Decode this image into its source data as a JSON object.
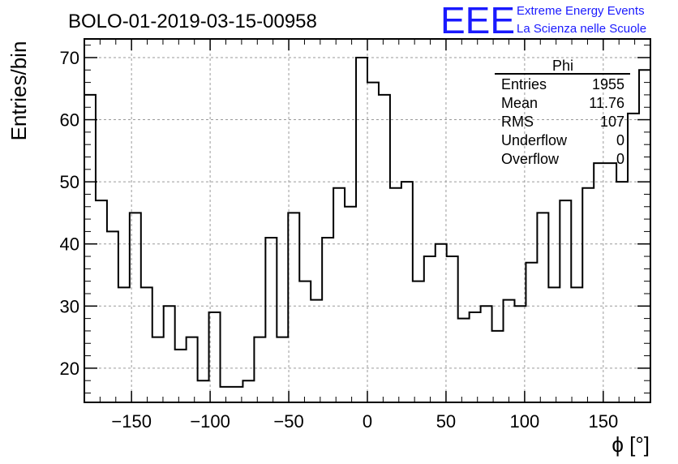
{
  "title": "BOLO-01-2019-03-15-00958",
  "brand": {
    "logo": "EEE",
    "line1": "Extreme Energy Events",
    "line2": "La Scienza nelle Scuole",
    "color": "#1a1aff"
  },
  "stats": {
    "name": "Phi",
    "rows": [
      {
        "label": "Entries",
        "value": "1955"
      },
      {
        "label": "Mean",
        "value": "11.76"
      },
      {
        "label": "RMS",
        "value": "107"
      },
      {
        "label": "Underflow",
        "value": "0"
      },
      {
        "label": "Overflow",
        "value": "0"
      }
    ]
  },
  "chart_data": {
    "type": "histogram",
    "xlabel": "ϕ [°]",
    "ylabel": "Entries/bin",
    "xlim": [
      -180,
      180
    ],
    "ylim": [
      14.5,
      73
    ],
    "grid": true,
    "x_ticks": [
      -150,
      -100,
      -50,
      0,
      50,
      100,
      150
    ],
    "x_tick_labels": [
      "−150",
      "−100",
      "−50",
      "0",
      "50",
      "100",
      "150"
    ],
    "y_ticks": [
      20,
      30,
      40,
      50,
      60,
      70
    ],
    "y_tick_labels": [
      "20",
      "30",
      "40",
      "50",
      "60",
      "70"
    ],
    "bin_width": 7.2,
    "bin_edges_start": -180,
    "values": [
      64,
      47,
      42,
      33,
      45,
      33,
      25,
      30,
      23,
      25,
      18,
      29,
      17,
      17,
      18,
      25,
      41,
      25,
      45,
      34,
      31,
      41,
      49,
      46,
      70,
      66,
      64,
      49,
      50,
      34,
      38,
      40,
      38,
      28,
      29,
      30,
      26,
      31,
      30,
      37,
      45,
      33,
      47,
      33,
      49,
      53,
      53,
      50,
      61,
      68
    ],
    "line_color": "#000000"
  }
}
